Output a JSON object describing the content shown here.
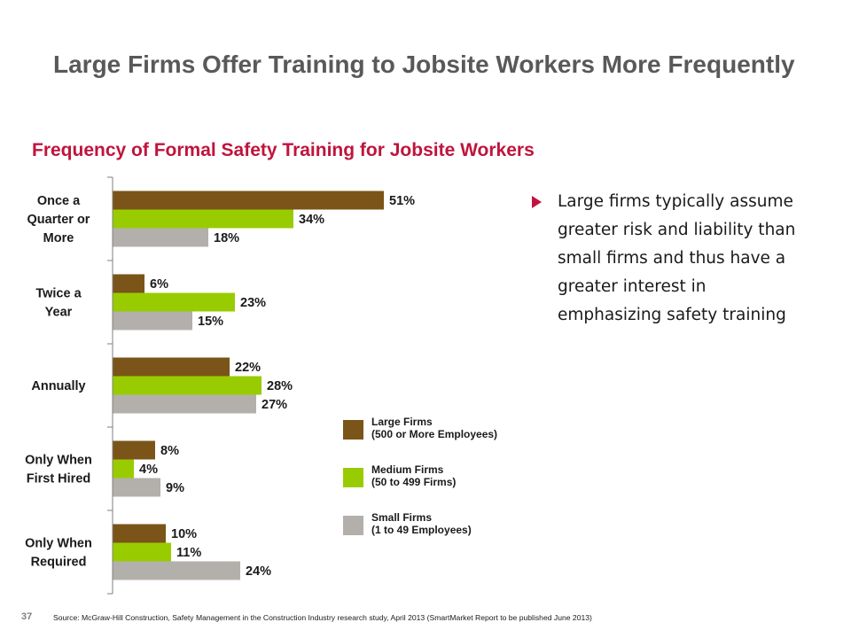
{
  "slide": {
    "title": "Large Firms Offer Training to Jobsite Workers More Frequently",
    "bullet": "Large firms typically assume greater risk and liability than small firms and thus have a greater interest in emphasizing safety training",
    "page_number": "37",
    "source": "Source: McGraw-Hill Construction, Safety Management in the Construction Industry research study, April 2013 (SmartMarket Report to be published  June 2013)"
  },
  "colors": {
    "large": "#7a5418",
    "medium": "#99cc00",
    "small": "#b3b0ac",
    "title": "#595959",
    "chart_title": "#c0143c"
  },
  "legend": [
    {
      "line1": "Large Firms",
      "line2": "(500 or More Employees)"
    },
    {
      "line1": "Medium Firms",
      "line2": "(50 to 499 Firms)"
    },
    {
      "line1": "Small Firms",
      "line2": "(1 to 49 Employees)"
    }
  ],
  "chart_data": {
    "type": "bar",
    "orientation": "horizontal",
    "title": "Frequency of Formal Safety Training for Jobsite Workers",
    "categories": [
      [
        "Once a",
        "Quarter or",
        "More"
      ],
      [
        "Twice a",
        "Year"
      ],
      [
        "Annually"
      ],
      [
        "Only When",
        "First Hired"
      ],
      [
        "Only When",
        "Required"
      ]
    ],
    "series": [
      {
        "name": "Large Firms (500 or More Employees)",
        "values": [
          51,
          6,
          22,
          8,
          10
        ]
      },
      {
        "name": "Medium Firms (50 to 499 Firms)",
        "values": [
          34,
          23,
          28,
          4,
          11
        ]
      },
      {
        "name": "Small Firms (1 to 49 Employees)",
        "values": [
          18,
          15,
          27,
          9,
          24
        ]
      }
    ],
    "value_suffix": "%",
    "xlim": [
      0,
      100
    ],
    "grid": false,
    "legend_position": "right"
  }
}
